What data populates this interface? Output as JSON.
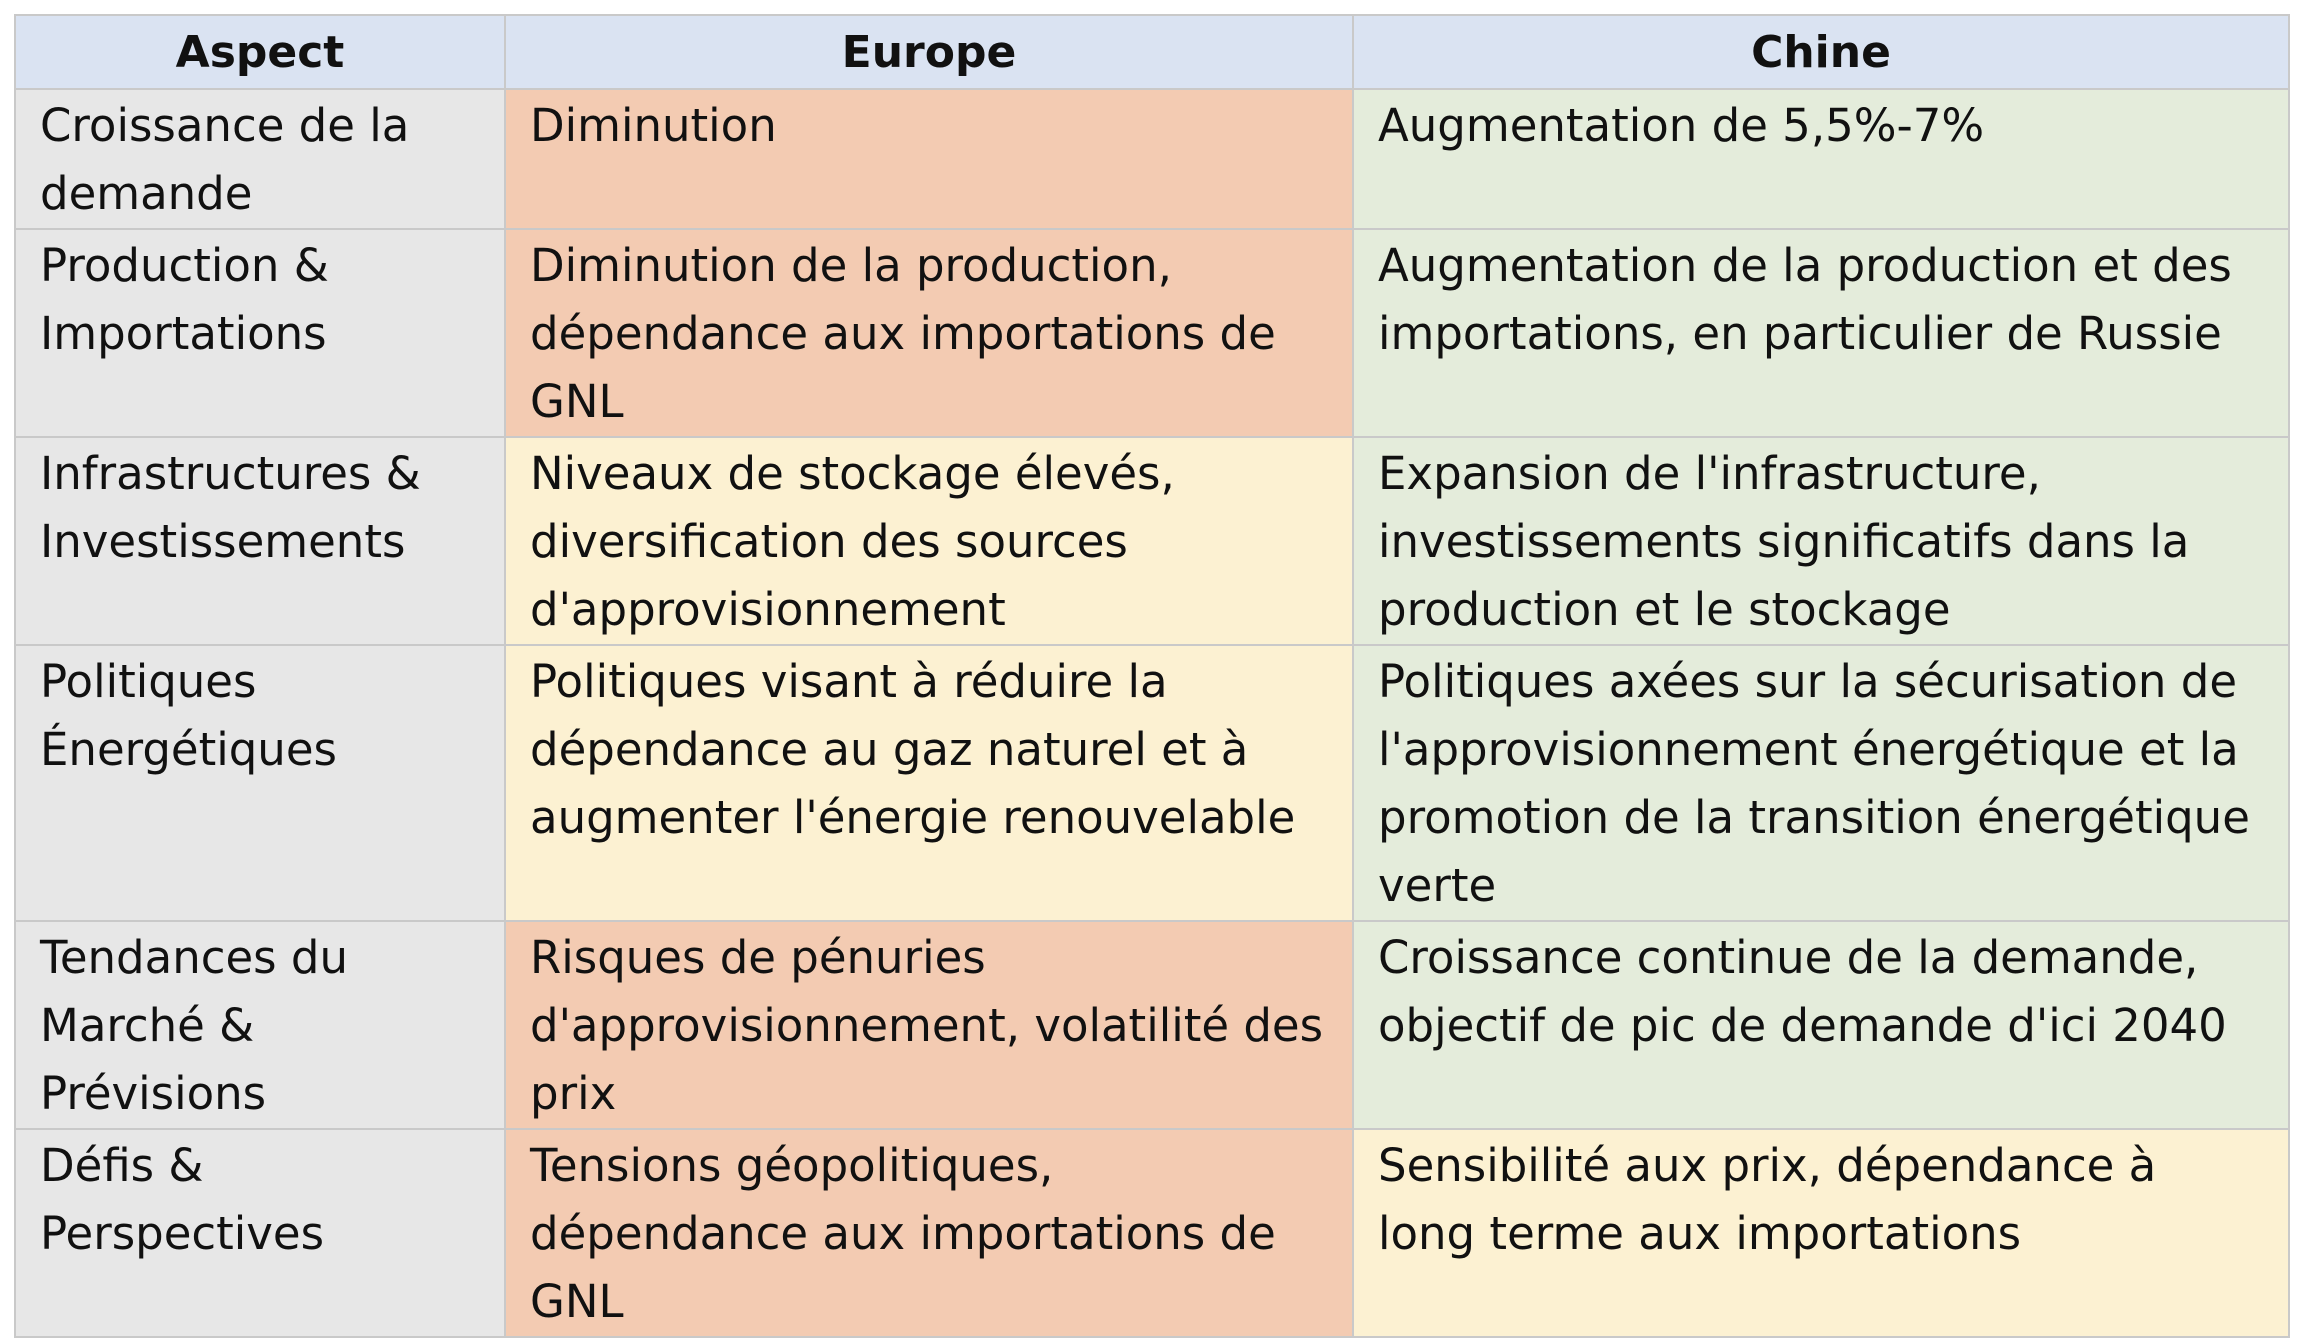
{
  "colors": {
    "header_bg": "#dae3f2",
    "aspect_bg": "#e7e7e7",
    "red": "#f3cbb2",
    "yellow": "#fcf1d2",
    "green": "#e4ecdb"
  },
  "headers": [
    "Aspect",
    "Europe",
    "Chine"
  ],
  "rows": [
    {
      "aspect": "Croissance de la demande",
      "europe": "Diminution",
      "chine": "Augmentation de 5,5%-7%",
      "europe_color": "#f3cbb2",
      "chine_color": "#e4ecdb"
    },
    {
      "aspect": "Production & Importations",
      "europe": "Diminution de la production, dépendance aux importations de GNL",
      "chine": "Augmentation de la production et des importations, en particulier de Russie",
      "europe_color": "#f3cbb2",
      "chine_color": "#e4ecdb"
    },
    {
      "aspect": "Infrastructures & Investissements",
      "europe": "Niveaux de stockage élevés, diversification des sources d'approvisionnement",
      "chine": "Expansion de l'infrastructure, investissements significatifs dans la production et le stockage",
      "europe_color": "#fcf1d2",
      "chine_color": "#e4ecdb"
    },
    {
      "aspect": "Politiques Énergétiques",
      "europe": "Politiques visant à réduire la dépendance au gaz naturel et à augmenter l'énergie renouvelable",
      "chine": "Politiques axées sur la sécurisation de l'approvisionnement énergétique et la promotion de la transition énergétique verte",
      "europe_color": "#fcf1d2",
      "chine_color": "#e4ecdb"
    },
    {
      "aspect": "Tendances du Marché & Prévisions",
      "europe": "Risques de pénuries d'approvisionnement, volatilité des prix",
      "chine": "Croissance continue de la demande, objectif de pic de demande d'ici 2040",
      "europe_color": "#f3cbb2",
      "chine_color": "#e4ecdb"
    },
    {
      "aspect": "Défis & Perspectives",
      "europe": "Tensions géopolitiques, dépendance aux importations de GNL",
      "chine": "Sensibilité aux prix, dépendance à long terme aux importations",
      "europe_color": "#f3cbb2",
      "chine_color": "#fcf1d2"
    }
  ]
}
